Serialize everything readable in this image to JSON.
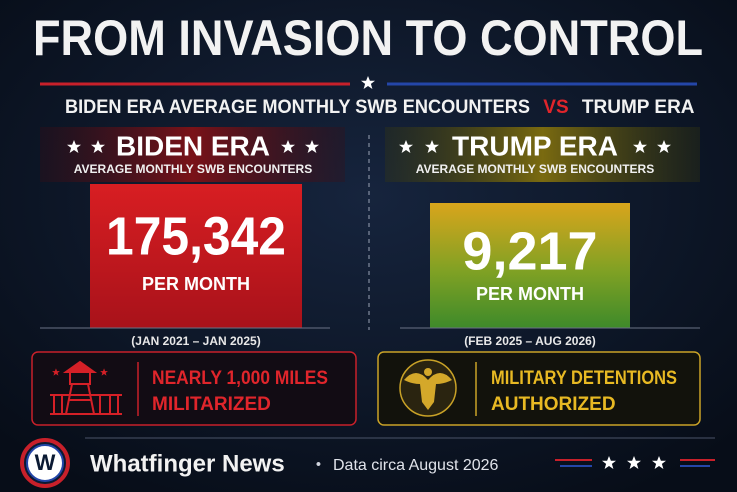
{
  "title": "FROM INVASION TO CONTROL",
  "subtitle": {
    "left": "BIDEN ERA AVERAGE MONTHLY SWB ENCOUNTERS",
    "vs": "VS",
    "right": "TRUMP ERA"
  },
  "panels": [
    {
      "heading": "BIDEN ERA",
      "subheading": "AVERAGE MONTHLY SWB ENCOUNTERS",
      "value": "175,342",
      "unit": "PER MONTH",
      "period": "(JAN 2021 – JAN 2025)",
      "note": [
        "NEARLY 1,000 MILES",
        "MILITARIZED"
      ]
    },
    {
      "heading": "TRUMP ERA",
      "subheading": "AVERAGE MONTHLY SWB ENCOUNTERS",
      "value": "9,217",
      "unit": "PER MONTH",
      "period": "(FEB 2025 – AUG 2026)",
      "note": [
        "MILITARY DETENTIONS",
        "AUTHORIZED"
      ]
    }
  ],
  "footer": {
    "logo": "W",
    "brand": "Whatfinger News",
    "separator": "•",
    "source": "Data circa August 2026"
  }
}
